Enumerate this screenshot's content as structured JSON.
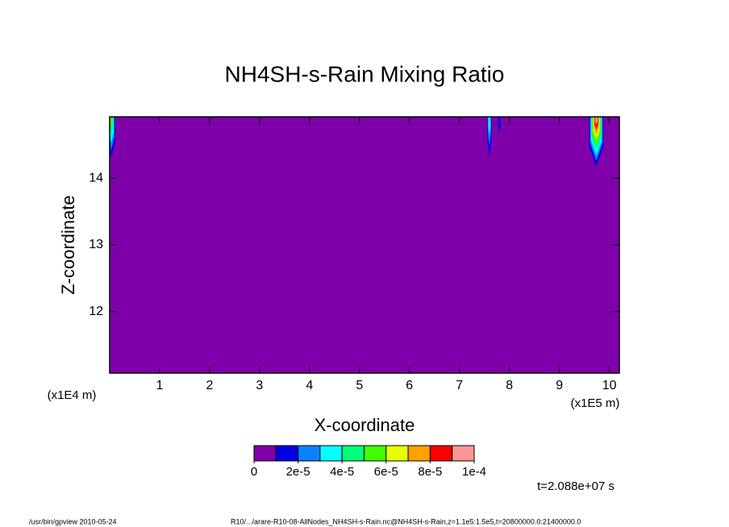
{
  "chart_data": {
    "type": "contour",
    "title": "NH4SH-s-Rain Mixing Ratio",
    "x_label": "X-coordinate",
    "y_label": "Z-coordinate",
    "x_unit": "(x1E5 m)",
    "y_unit": "(x1E4 m)",
    "time_label": "t=2.088e+07 s",
    "footer_left": "/usr/bin/gpview  2010-05-24",
    "footer_right": "R10/.../arare-R10-08-AllNodes_NH4SH-s-Rain.nc@NH4SH-s-Rain,z=1.1e5:1.5e5,t=20800000.0:21400000.0",
    "xlim": [
      0,
      10.2
    ],
    "ylim": [
      11.08,
      14.92
    ],
    "xticks": [
      1,
      2,
      3,
      4,
      5,
      6,
      7,
      8,
      9,
      10
    ],
    "yticks": [
      12,
      13,
      14
    ],
    "colorbar": {
      "levels": [
        0,
        1e-05,
        2e-05,
        3e-05,
        4e-05,
        5e-05,
        6e-05,
        7e-05,
        8e-05,
        9e-05,
        0.0001
      ],
      "colors": [
        "#7f00aa",
        "#0000e6",
        "#0a82ff",
        "#00ffff",
        "#00ff78",
        "#40ff00",
        "#e6ff00",
        "#ffa000",
        "#ff0000",
        "#ff9696"
      ],
      "ticks": [
        0,
        {
          "value": 2e-05,
          "label": "2e-5"
        },
        {
          "value": 4e-05,
          "label": "4e-5"
        },
        {
          "value": 6e-05,
          "label": "6e-5"
        },
        {
          "value": 8e-05,
          "label": "8e-5"
        },
        {
          "value": 0.0001,
          "label": "1e-4"
        }
      ]
    },
    "features": [
      {
        "x": 0.03,
        "halfwidth": 0.08,
        "bottom": 14.3,
        "peak": 5e-05
      },
      {
        "x": 7.6,
        "halfwidth": 0.04,
        "bottom": 14.31,
        "peak": 3e-05
      },
      {
        "x": 7.8,
        "halfwidth": 0.02,
        "bottom": 14.67,
        "peak": 1e-05
      },
      {
        "x": 9.74,
        "halfwidth": 0.14,
        "bottom": 14.18,
        "peak": 9e-05
      }
    ]
  }
}
